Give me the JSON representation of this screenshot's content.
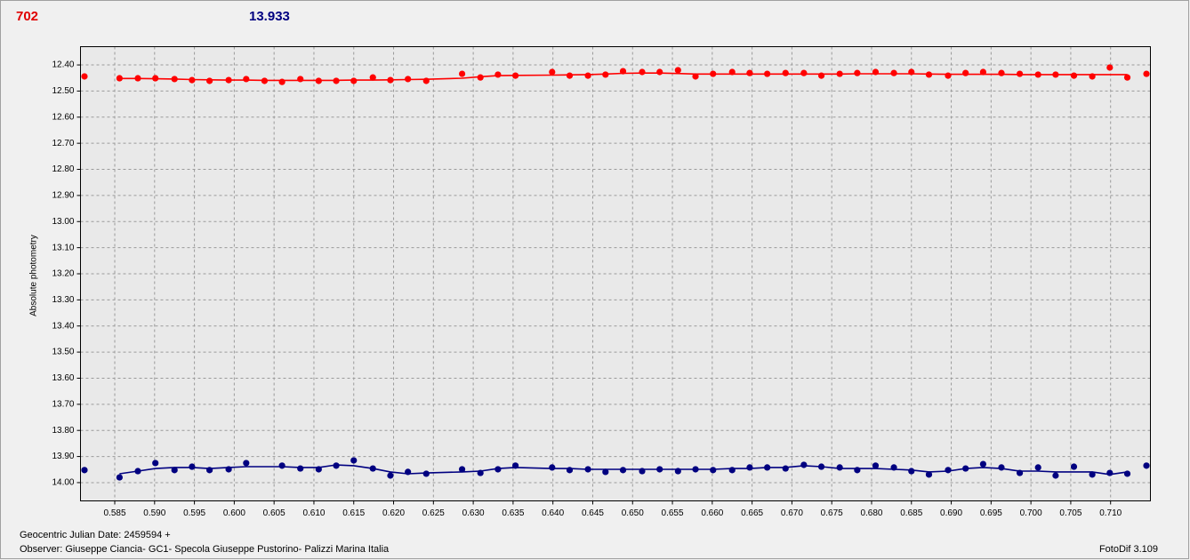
{
  "chart_data": {
    "type": "scatter",
    "header_values": [
      {
        "text": "702",
        "color": "#e00000"
      },
      {
        "text": "13.933",
        "color": "#000080"
      }
    ],
    "y_label": "Absolute photometry",
    "footer_left": [
      "Geocentric Julian Date: 2459594 +",
      "Observer: Giuseppe Ciancia- GC1- Specola Giuseppe Pustorino- Palizzi Marina Italia"
    ],
    "footer_right": "FotoDif 3.109",
    "grid": true,
    "xlim": [
      0.5807,
      0.715
    ],
    "ylim": [
      14.07,
      12.33
    ],
    "xticks": [
      0.585,
      {
        "value": 0.59,
        "label": "0.590"
      },
      0.595,
      {
        "value": 0.6,
        "label": "0.600"
      },
      0.605,
      {
        "value": 0.61,
        "label": "0.610"
      },
      0.615,
      {
        "value": 0.62,
        "label": "0.620"
      },
      0.625,
      {
        "value": 0.63,
        "label": "0.630"
      },
      0.635,
      {
        "value": 0.64,
        "label": "0.640"
      },
      0.645,
      {
        "value": 0.65,
        "label": "0.650"
      },
      0.655,
      {
        "value": 0.66,
        "label": "0.660"
      },
      0.665,
      {
        "value": 0.67,
        "label": "0.670"
      },
      0.675,
      {
        "value": 0.68,
        "label": "0.680"
      },
      0.685,
      {
        "value": 0.69,
        "label": "0.690"
      },
      0.695,
      {
        "value": 0.7,
        "label": "0.700"
      },
      0.705,
      {
        "value": 0.71,
        "label": "0.710"
      }
    ],
    "yticks": [
      {
        "value": 12.4,
        "label": "12.40"
      },
      {
        "value": 12.5,
        "label": "12.50"
      },
      {
        "value": 12.6,
        "label": "12.60"
      },
      {
        "value": 12.7,
        "label": "12.70"
      },
      {
        "value": 12.8,
        "label": "12.80"
      },
      {
        "value": 12.9,
        "label": "12.90"
      },
      {
        "value": 13.0,
        "label": "13.00"
      },
      {
        "value": 13.1,
        "label": "13.10"
      },
      {
        "value": 13.2,
        "label": "13.20"
      },
      {
        "value": 13.3,
        "label": "13.30"
      },
      {
        "value": 13.4,
        "label": "13.40"
      },
      {
        "value": 13.5,
        "label": "13.50"
      },
      {
        "value": 13.6,
        "label": "13.60"
      },
      {
        "value": 13.7,
        "label": "13.70"
      },
      {
        "value": 13.8,
        "label": "13.80"
      },
      {
        "value": 13.9,
        "label": "13.90"
      },
      {
        "value": 14.0,
        "label": "14.00"
      }
    ],
    "x": [
      0.5812,
      0.5856,
      0.5879,
      0.5901,
      0.5925,
      0.5947,
      0.5969,
      0.5993,
      0.6015,
      0.6038,
      0.606,
      0.6083,
      0.6106,
      0.6128,
      0.615,
      0.6174,
      0.6196,
      0.6218,
      0.6241,
      0.6286,
      0.6309,
      0.6331,
      0.6353,
      0.6399,
      0.6421,
      0.6444,
      0.6466,
      0.6488,
      0.6512,
      0.6534,
      0.6557,
      0.6579,
      0.6601,
      0.6625,
      0.6647,
      0.6669,
      0.6692,
      0.6715,
      0.6737,
      0.676,
      0.6782,
      0.6805,
      0.6828,
      0.685,
      0.6872,
      0.6896,
      0.6918,
      0.694,
      0.6963,
      0.6986,
      0.7009,
      0.7031,
      0.7054,
      0.7077,
      0.7099,
      0.7121,
      0.7145
    ],
    "series": [
      {
        "color": "#ff0000",
        "values": [
          12.444,
          12.451,
          12.451,
          12.451,
          12.454,
          12.458,
          12.461,
          12.458,
          12.454,
          12.461,
          12.465,
          12.454,
          12.461,
          12.461,
          12.461,
          12.448,
          12.458,
          12.454,
          12.461,
          12.434,
          12.448,
          12.437,
          12.441,
          12.427,
          12.441,
          12.441,
          12.437,
          12.424,
          12.427,
          12.427,
          12.42,
          12.444,
          12.434,
          12.427,
          12.431,
          12.434,
          12.431,
          12.431,
          12.441,
          12.434,
          12.431,
          12.427,
          12.431,
          12.427,
          12.437,
          12.441,
          12.431,
          12.427,
          12.431,
          12.434,
          12.437,
          12.437,
          12.441,
          12.444,
          12.41,
          12.448,
          12.434
        ],
        "fit": [
          null,
          12.452,
          12.452,
          12.453,
          12.454,
          12.456,
          12.457,
          12.458,
          12.458,
          12.459,
          12.459,
          12.459,
          12.459,
          12.459,
          12.458,
          12.458,
          12.457,
          12.456,
          12.455,
          12.451,
          12.445,
          12.441,
          12.44,
          12.439,
          12.438,
          12.437,
          12.435,
          12.432,
          12.431,
          12.431,
          12.433,
          12.435,
          12.435,
          12.435,
          12.435,
          12.435,
          12.435,
          12.435,
          12.435,
          12.435,
          12.434,
          12.434,
          12.434,
          12.434,
          12.435,
          12.436,
          12.436,
          12.436,
          12.436,
          12.437,
          12.437,
          12.437,
          12.437,
          12.437,
          12.437,
          12.437,
          null
        ]
      },
      {
        "color": "#000080",
        "values": [
          13.952,
          13.98,
          13.956,
          13.925,
          13.952,
          13.939,
          13.952,
          13.949,
          13.925,
          null,
          13.935,
          13.946,
          13.949,
          13.935,
          13.915,
          13.946,
          13.973,
          13.959,
          13.966,
          13.949,
          13.963,
          13.949,
          13.935,
          13.942,
          13.952,
          13.949,
          13.959,
          13.952,
          13.956,
          13.949,
          13.956,
          13.949,
          13.952,
          13.952,
          13.942,
          13.942,
          13.946,
          13.932,
          13.939,
          13.942,
          13.952,
          13.935,
          13.942,
          13.956,
          13.969,
          13.952,
          13.946,
          13.929,
          13.942,
          13.963,
          13.942,
          13.973,
          13.939,
          13.969,
          13.963,
          13.966,
          13.935
        ],
        "fit": [
          null,
          13.966,
          13.956,
          13.946,
          13.942,
          13.942,
          13.946,
          13.942,
          13.939,
          13.939,
          13.939,
          13.942,
          13.942,
          13.932,
          13.935,
          13.946,
          13.959,
          13.966,
          13.963,
          13.959,
          13.956,
          13.946,
          13.942,
          13.946,
          13.946,
          13.949,
          13.949,
          13.949,
          13.949,
          13.949,
          13.949,
          13.949,
          13.949,
          13.946,
          13.946,
          13.942,
          13.942,
          13.935,
          13.939,
          13.946,
          13.946,
          13.946,
          13.949,
          13.952,
          13.959,
          13.956,
          13.946,
          13.942,
          13.946,
          13.956,
          13.956,
          13.959,
          13.959,
          13.959,
          13.969,
          13.959,
          null
        ]
      }
    ]
  }
}
